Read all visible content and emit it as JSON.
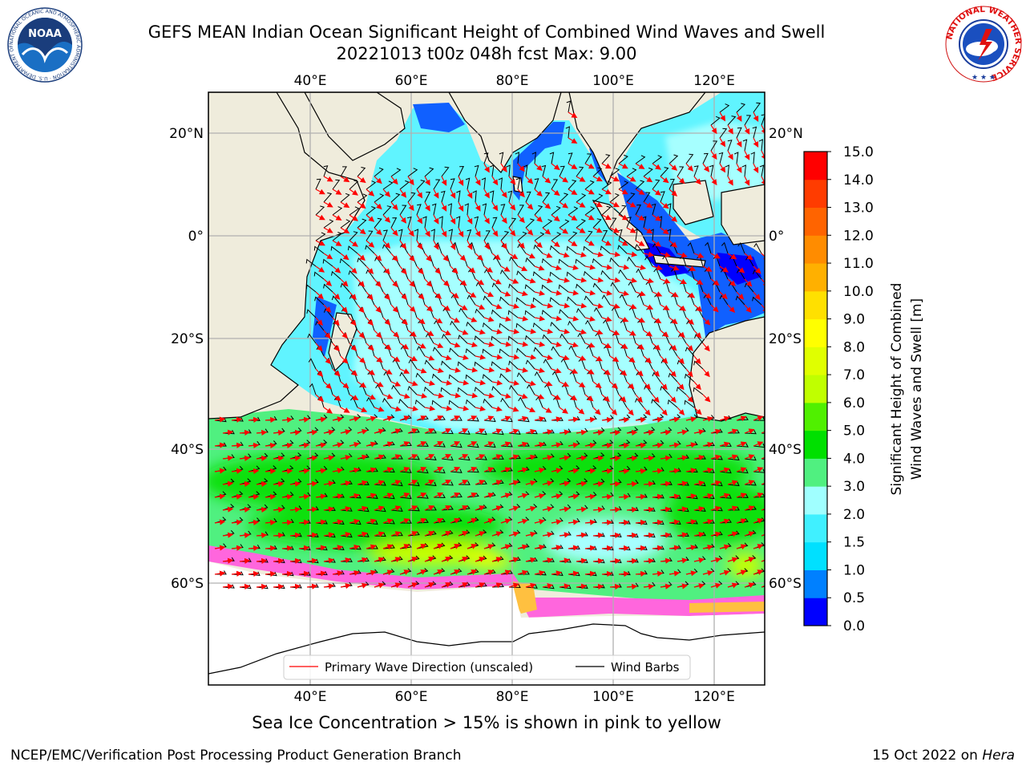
{
  "title": {
    "line1": "GEFS MEAN Indian Ocean Significant Height of Combined Wind Waves and Swell",
    "line2": "20221013 t00z 048h fcst   Max: 9.00"
  },
  "map": {
    "lon_ticks": [
      "40°E",
      "60°E",
      "80°E",
      "100°E",
      "120°E"
    ],
    "lat_ticks": [
      "20°N",
      "0°",
      "20°S",
      "40°S",
      "60°S"
    ],
    "lon_range": [
      20,
      130
    ],
    "lat_range": [
      -75,
      27
    ],
    "grid": true,
    "land_color": "#efecdc",
    "ice_color": "#ffffff"
  },
  "legend": {
    "wave_label": "Primary Wave Direction (unscaled)",
    "wind_label": "Wind Barbs",
    "wave_color": "#ff0000",
    "wind_color": "#000000",
    "placement": "bottom-center"
  },
  "colorbar": {
    "label_line1": "Significant Height of Combined",
    "label_line2": "Wind Waves and Swell [m]",
    "ticks": [
      "0.0",
      "0.5",
      "1.0",
      "1.5",
      "2.0",
      "3.0",
      "4.0",
      "5.0",
      "6.0",
      "7.0",
      "8.0",
      "9.0",
      "10.0",
      "11.0",
      "12.0",
      "13.0",
      "14.0",
      "15.0"
    ],
    "colors": [
      "#0000ff",
      "#0080ff",
      "#00e0ff",
      "#40f0ff",
      "#a0ffff",
      "#50f080",
      "#00e000",
      "#50f000",
      "#c0ff00",
      "#e0ff00",
      "#ffff00",
      "#ffe000",
      "#ffb000",
      "#ff8c00",
      "#ff6400",
      "#ff3c00",
      "#ff0000"
    ]
  },
  "chart_data": {
    "type": "heatmap",
    "variable": "Significant Height of Combined Wind Waves and Swell",
    "units": "m",
    "max": 9.0,
    "approx_regions": [
      {
        "region": "Tropical Indian Ocean",
        "range_m": [
          1.5,
          2.5
        ]
      },
      {
        "region": "Arabian Sea / Bay of Bengal coasts",
        "range_m": [
          0.5,
          1.5
        ]
      },
      {
        "region": "Indonesian seas",
        "range_m": [
          0.0,
          1.0
        ]
      },
      {
        "region": "Southern Ocean 40°S-60°S",
        "range_m": [
          3.0,
          6.0
        ]
      },
      {
        "region": "Southern Ocean south of Africa ~55°S",
        "range_m": [
          6.0,
          7.0
        ]
      }
    ]
  },
  "caption": "Sea Ice Concentration > 15% is shown in pink to yellow",
  "footer": {
    "left": "NCEP/EMC/Verification Post Processing Product Generation Branch",
    "date": "15 Oct 2022 on ",
    "machine": "Hera"
  },
  "logos": {
    "noaa_text": "NOAA",
    "noaa_ring": "NATIONAL OCEANIC AND ATMOSPHERIC ADMINISTRATION · U.S. DEPARTMENT OF COMMERCE",
    "nws_ring": "NATIONAL WEATHER SERVICE"
  }
}
